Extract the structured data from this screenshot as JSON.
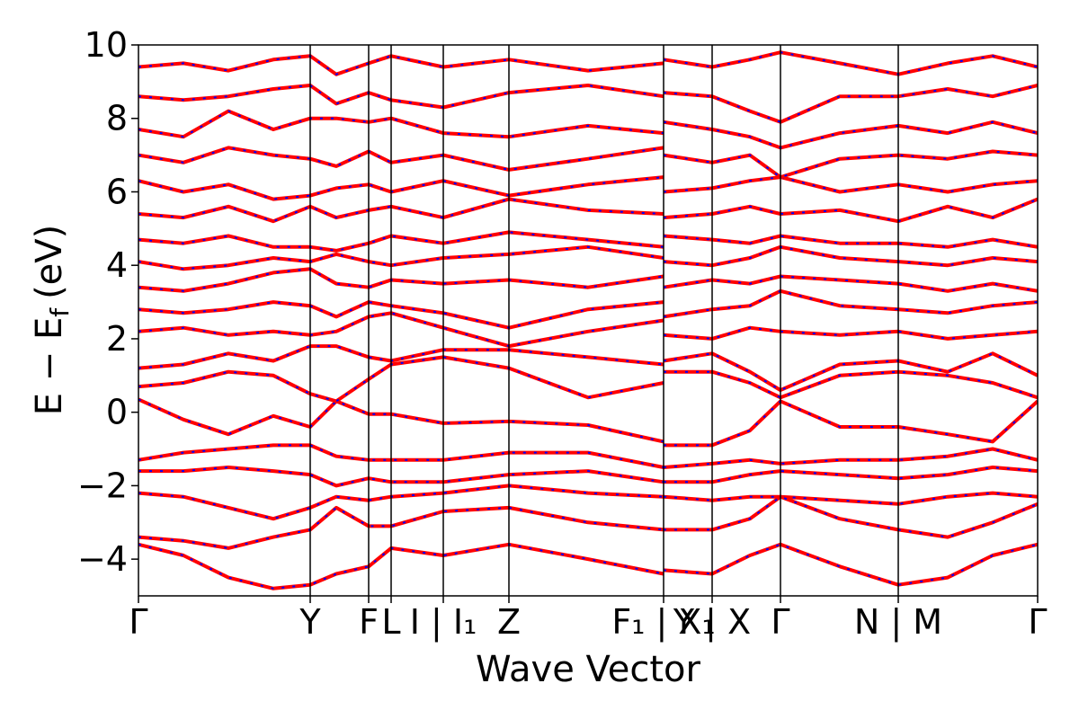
{
  "chart_data": {
    "type": "line",
    "title": "",
    "xlabel": "Wave Vector",
    "ylabel": "E − E_f (eV)",
    "ylabel_parts": {
      "main": "E − E",
      "sub": "f",
      "unit": "(eV)"
    },
    "ylim": [
      -5,
      10
    ],
    "yticks": [
      -4,
      -2,
      0,
      2,
      4,
      6,
      8,
      10
    ],
    "ytick_labels": [
      "−4",
      "−2",
      "0",
      "2",
      "4",
      "6",
      "8",
      "10"
    ],
    "xlim": [
      0,
      1
    ],
    "kpoints": [
      {
        "x": 0.0,
        "label": "Γ"
      },
      {
        "x": 0.191,
        "label": "Y"
      },
      {
        "x": 0.256,
        "label": "F"
      },
      {
        "x": 0.281,
        "label": "L"
      },
      {
        "x": 0.339,
        "label": "I | I₁"
      },
      {
        "x": 0.412,
        "label": "Z"
      },
      {
        "x": 0.584,
        "label": "F₁ | X₁"
      },
      {
        "x": 0.638,
        "label": "Y | X"
      },
      {
        "x": 0.714,
        "label": "Γ"
      },
      {
        "x": 0.845,
        "label": "N | M"
      },
      {
        "x": 1.0,
        "label": "Γ"
      }
    ],
    "grid": false,
    "colors": {
      "band_solid": "#ff0000",
      "band_dashed": "#0000ff",
      "kpath_line": "#000000"
    },
    "series": [
      {
        "style": "solid red",
        "x": [
          0,
          0.05,
          0.1,
          0.15,
          0.191,
          0.22,
          0.256,
          0.281,
          0.339,
          0.412,
          0.5,
          0.584
        ],
        "y": [
          0.35,
          -0.2,
          -0.6,
          -0.1,
          -0.4,
          0.3,
          -0.05,
          -0.05,
          -0.3,
          -0.25,
          -0.35,
          -0.8
        ]
      },
      {
        "style": "solid red",
        "x": [
          0.584,
          0.638,
          0.68,
          0.714,
          0.78,
          0.845,
          0.9,
          0.95,
          1.0
        ],
        "y": [
          -0.9,
          -0.9,
          -0.5,
          0.3,
          -0.4,
          -0.4,
          -0.6,
          -0.8,
          0.3
        ]
      },
      {
        "style": "solid red",
        "x": [
          0,
          0.05,
          0.1,
          0.15,
          0.191,
          0.22,
          0.256,
          0.281,
          0.339,
          0.412,
          0.5,
          0.584
        ],
        "y": [
          -1.3,
          -1.1,
          -1.0,
          -0.9,
          -0.9,
          -1.2,
          -1.3,
          -1.3,
          -1.3,
          -1.1,
          -1.1,
          -1.5
        ]
      },
      {
        "style": "solid red",
        "x": [
          0.584,
          0.638,
          0.68,
          0.714,
          0.78,
          0.845,
          0.9,
          0.95,
          1.0
        ],
        "y": [
          -1.5,
          -1.4,
          -1.3,
          -1.4,
          -1.3,
          -1.3,
          -1.2,
          -1.0,
          -1.3
        ]
      },
      {
        "style": "solid red",
        "x": [
          0,
          0.05,
          0.1,
          0.15,
          0.191,
          0.22,
          0.256,
          0.281,
          0.339,
          0.412,
          0.5,
          0.584
        ],
        "y": [
          -1.6,
          -1.6,
          -1.5,
          -1.6,
          -1.7,
          -2.0,
          -1.8,
          -1.9,
          -1.9,
          -1.7,
          -1.6,
          -1.9
        ]
      },
      {
        "style": "solid red",
        "x": [
          0.584,
          0.638,
          0.68,
          0.714,
          0.78,
          0.845,
          0.9,
          0.95,
          1.0
        ],
        "y": [
          -1.9,
          -1.9,
          -1.7,
          -1.6,
          -1.7,
          -1.8,
          -1.7,
          -1.5,
          -1.6
        ]
      },
      {
        "style": "solid red",
        "x": [
          0,
          0.05,
          0.1,
          0.15,
          0.191,
          0.22,
          0.256,
          0.281,
          0.339,
          0.412,
          0.5,
          0.584
        ],
        "y": [
          -2.2,
          -2.3,
          -2.6,
          -2.9,
          -2.6,
          -2.3,
          -2.4,
          -2.3,
          -2.2,
          -2.0,
          -2.2,
          -2.3
        ]
      },
      {
        "style": "solid red",
        "x": [
          0.584,
          0.638,
          0.68,
          0.714,
          0.78,
          0.845,
          0.9,
          0.95,
          1.0
        ],
        "y": [
          -2.3,
          -2.4,
          -2.3,
          -2.3,
          -2.4,
          -2.5,
          -2.3,
          -2.2,
          -2.3
        ]
      },
      {
        "style": "solid red",
        "x": [
          0,
          0.05,
          0.1,
          0.15,
          0.191,
          0.22,
          0.256,
          0.281,
          0.339,
          0.412,
          0.5,
          0.584
        ],
        "y": [
          -3.4,
          -3.5,
          -3.7,
          -3.4,
          -3.2,
          -2.6,
          -3.1,
          -3.1,
          -2.7,
          -2.6,
          -3.0,
          -3.2
        ]
      },
      {
        "style": "solid red",
        "x": [
          0.584,
          0.638,
          0.68,
          0.714,
          0.78,
          0.845,
          0.9,
          0.95,
          1.0
        ],
        "y": [
          -3.2,
          -3.2,
          -2.9,
          -2.3,
          -2.9,
          -3.2,
          -3.4,
          -3.0,
          -2.5
        ]
      },
      {
        "style": "solid red",
        "x": [
          0,
          0.05,
          0.1,
          0.15,
          0.191,
          0.22,
          0.256,
          0.281,
          0.339,
          0.412,
          0.5,
          0.584
        ],
        "y": [
          -3.6,
          -3.9,
          -4.5,
          -4.8,
          -4.7,
          -4.4,
          -4.2,
          -3.7,
          -3.9,
          -3.6,
          -4.0,
          -4.4
        ]
      },
      {
        "style": "solid red",
        "x": [
          0.584,
          0.638,
          0.68,
          0.714,
          0.78,
          0.845,
          0.9,
          0.95,
          1.0
        ],
        "y": [
          -4.3,
          -4.4,
          -3.9,
          -3.6,
          -4.2,
          -4.7,
          -4.5,
          -3.9,
          -3.6
        ]
      },
      {
        "style": "solid red",
        "x": [
          0,
          0.05,
          0.1,
          0.15,
          0.191,
          0.22,
          0.256,
          0.281,
          0.339,
          0.412,
          0.5,
          0.584
        ],
        "y": [
          0.7,
          0.8,
          1.1,
          1.0,
          0.5,
          0.3,
          0.9,
          1.3,
          1.5,
          1.2,
          0.4,
          0.8
        ]
      },
      {
        "style": "solid red",
        "x": [
          0.584,
          0.638,
          0.68,
          0.714,
          0.78,
          0.845,
          0.9,
          0.95,
          1.0
        ],
        "y": [
          1.1,
          1.1,
          0.8,
          0.4,
          1.0,
          1.1,
          1.0,
          0.8,
          0.4
        ]
      },
      {
        "style": "solid red",
        "x": [
          0,
          0.05,
          0.1,
          0.15,
          0.191,
          0.22,
          0.256,
          0.281,
          0.339,
          0.412,
          0.5,
          0.584
        ],
        "y": [
          1.2,
          1.3,
          1.6,
          1.4,
          1.8,
          1.8,
          1.5,
          1.4,
          1.7,
          1.7,
          1.5,
          1.3
        ]
      },
      {
        "style": "solid red",
        "x": [
          0.584,
          0.638,
          0.68,
          0.714,
          0.78,
          0.845,
          0.9,
          0.95,
          1.0
        ],
        "y": [
          1.4,
          1.6,
          1.1,
          0.6,
          1.3,
          1.4,
          1.1,
          1.6,
          1.0
        ]
      },
      {
        "style": "solid red",
        "x": [
          0,
          0.05,
          0.1,
          0.15,
          0.191,
          0.22,
          0.256,
          0.281,
          0.339,
          0.412,
          0.5,
          0.584
        ],
        "y": [
          2.2,
          2.3,
          2.1,
          2.2,
          2.1,
          2.2,
          2.6,
          2.7,
          2.3,
          1.8,
          2.2,
          2.5
        ]
      },
      {
        "style": "solid red",
        "x": [
          0.584,
          0.638,
          0.68,
          0.714,
          0.78,
          0.845,
          0.9,
          0.95,
          1.0
        ],
        "y": [
          2.1,
          2.0,
          2.3,
          2.2,
          2.1,
          2.2,
          2.0,
          2.1,
          2.2
        ]
      },
      {
        "style": "solid red",
        "x": [
          0,
          0.05,
          0.1,
          0.15,
          0.191,
          0.22,
          0.256,
          0.281,
          0.339,
          0.412,
          0.5,
          0.584
        ],
        "y": [
          2.8,
          2.7,
          2.8,
          3.0,
          2.9,
          2.6,
          3.0,
          2.9,
          2.7,
          2.3,
          2.8,
          3.0
        ]
      },
      {
        "style": "solid red",
        "x": [
          0.584,
          0.638,
          0.68,
          0.714,
          0.78,
          0.845,
          0.9,
          0.95,
          1.0
        ],
        "y": [
          2.6,
          2.8,
          2.9,
          3.3,
          2.9,
          2.8,
          2.7,
          2.9,
          3.0
        ]
      },
      {
        "style": "solid red",
        "x": [
          0,
          0.05,
          0.1,
          0.15,
          0.191,
          0.22,
          0.256,
          0.281,
          0.339,
          0.412,
          0.5,
          0.584
        ],
        "y": [
          3.4,
          3.3,
          3.5,
          3.8,
          3.9,
          3.5,
          3.4,
          3.6,
          3.5,
          3.6,
          3.4,
          3.7
        ]
      },
      {
        "style": "solid red",
        "x": [
          0.584,
          0.638,
          0.68,
          0.714,
          0.78,
          0.845,
          0.9,
          0.95,
          1.0
        ],
        "y": [
          3.4,
          3.6,
          3.5,
          3.7,
          3.6,
          3.5,
          3.3,
          3.5,
          3.3
        ]
      },
      {
        "style": "solid red",
        "x": [
          0,
          0.05,
          0.1,
          0.15,
          0.191,
          0.22,
          0.256,
          0.281,
          0.339,
          0.412,
          0.5,
          0.584
        ],
        "y": [
          4.1,
          3.9,
          4.0,
          4.2,
          4.1,
          4.3,
          4.1,
          4.0,
          4.2,
          4.3,
          4.5,
          4.2
        ]
      },
      {
        "style": "solid red",
        "x": [
          0.584,
          0.638,
          0.68,
          0.714,
          0.78,
          0.845,
          0.9,
          0.95,
          1.0
        ],
        "y": [
          4.1,
          4.0,
          4.2,
          4.5,
          4.2,
          4.1,
          4.0,
          4.2,
          4.1
        ]
      },
      {
        "style": "solid red",
        "x": [
          0,
          0.05,
          0.1,
          0.15,
          0.191,
          0.22,
          0.256,
          0.281,
          0.339,
          0.412,
          0.5,
          0.584
        ],
        "y": [
          4.7,
          4.6,
          4.8,
          4.5,
          4.5,
          4.4,
          4.6,
          4.8,
          4.6,
          4.9,
          4.7,
          4.5
        ]
      },
      {
        "style": "solid red",
        "x": [
          0.584,
          0.638,
          0.68,
          0.714,
          0.78,
          0.845,
          0.9,
          0.95,
          1.0
        ],
        "y": [
          4.8,
          4.7,
          4.6,
          4.8,
          4.6,
          4.6,
          4.5,
          4.7,
          4.5
        ]
      },
      {
        "style": "solid red",
        "x": [
          0,
          0.05,
          0.1,
          0.15,
          0.191,
          0.22,
          0.256,
          0.281,
          0.339,
          0.412,
          0.5,
          0.584
        ],
        "y": [
          5.4,
          5.3,
          5.6,
          5.2,
          5.6,
          5.3,
          5.5,
          5.6,
          5.3,
          5.8,
          5.5,
          5.4
        ]
      },
      {
        "style": "solid red",
        "x": [
          0.584,
          0.638,
          0.68,
          0.714,
          0.78,
          0.845,
          0.9,
          0.95,
          1.0
        ],
        "y": [
          5.3,
          5.4,
          5.6,
          5.4,
          5.5,
          5.2,
          5.6,
          5.3,
          5.8
        ]
      },
      {
        "style": "solid red",
        "x": [
          0,
          0.05,
          0.1,
          0.15,
          0.191,
          0.22,
          0.256,
          0.281,
          0.339,
          0.412,
          0.5,
          0.584
        ],
        "y": [
          6.3,
          6.0,
          6.2,
          5.8,
          5.9,
          6.1,
          6.2,
          6.0,
          6.3,
          5.9,
          6.2,
          6.4
        ]
      },
      {
        "style": "solid red",
        "x": [
          0.584,
          0.638,
          0.68,
          0.714,
          0.78,
          0.845,
          0.9,
          0.95,
          1.0
        ],
        "y": [
          6.0,
          6.1,
          6.3,
          6.4,
          6.0,
          6.2,
          6.0,
          6.2,
          6.3
        ]
      },
      {
        "style": "solid red",
        "x": [
          0,
          0.05,
          0.1,
          0.15,
          0.191,
          0.22,
          0.256,
          0.281,
          0.339,
          0.412,
          0.5,
          0.584
        ],
        "y": [
          7.0,
          6.8,
          7.2,
          7.0,
          6.9,
          6.7,
          7.1,
          6.8,
          7.0,
          6.6,
          6.9,
          7.2
        ]
      },
      {
        "style": "solid red",
        "x": [
          0.584,
          0.638,
          0.68,
          0.714,
          0.78,
          0.845,
          0.9,
          0.95,
          1.0
        ],
        "y": [
          7.0,
          6.8,
          7.0,
          6.4,
          6.9,
          7.0,
          6.9,
          7.1,
          7.0
        ]
      },
      {
        "style": "solid red",
        "x": [
          0,
          0.05,
          0.1,
          0.15,
          0.191,
          0.22,
          0.256,
          0.281,
          0.339,
          0.412,
          0.5,
          0.584
        ],
        "y": [
          7.7,
          7.5,
          8.2,
          7.7,
          8.0,
          8.0,
          7.9,
          8.0,
          7.6,
          7.5,
          7.8,
          7.6
        ]
      },
      {
        "style": "solid red",
        "x": [
          0.584,
          0.638,
          0.68,
          0.714,
          0.78,
          0.845,
          0.9,
          0.95,
          1.0
        ],
        "y": [
          7.9,
          7.7,
          7.5,
          7.2,
          7.6,
          7.8,
          7.6,
          7.9,
          7.6
        ]
      },
      {
        "style": "solid red",
        "x": [
          0,
          0.05,
          0.1,
          0.15,
          0.191,
          0.22,
          0.256,
          0.281,
          0.339,
          0.412,
          0.5,
          0.584
        ],
        "y": [
          8.6,
          8.5,
          8.6,
          8.8,
          8.9,
          8.4,
          8.7,
          8.5,
          8.3,
          8.7,
          8.9,
          8.6
        ]
      },
      {
        "style": "solid red",
        "x": [
          0.584,
          0.638,
          0.68,
          0.714,
          0.78,
          0.845,
          0.9,
          0.95,
          1.0
        ],
        "y": [
          8.7,
          8.6,
          8.2,
          7.9,
          8.6,
          8.6,
          8.8,
          8.6,
          8.9
        ]
      },
      {
        "style": "solid red",
        "x": [
          0,
          0.05,
          0.1,
          0.15,
          0.191,
          0.22,
          0.256,
          0.281,
          0.339,
          0.412,
          0.5,
          0.584
        ],
        "y": [
          9.4,
          9.5,
          9.3,
          9.6,
          9.7,
          9.2,
          9.5,
          9.7,
          9.4,
          9.6,
          9.3,
          9.5
        ]
      },
      {
        "style": "solid red",
        "x": [
          0.584,
          0.638,
          0.68,
          0.714,
          0.78,
          0.845,
          0.9,
          0.95,
          1.0
        ],
        "y": [
          9.6,
          9.4,
          9.6,
          9.8,
          9.5,
          9.2,
          9.5,
          9.7,
          9.4
        ]
      }
    ]
  }
}
